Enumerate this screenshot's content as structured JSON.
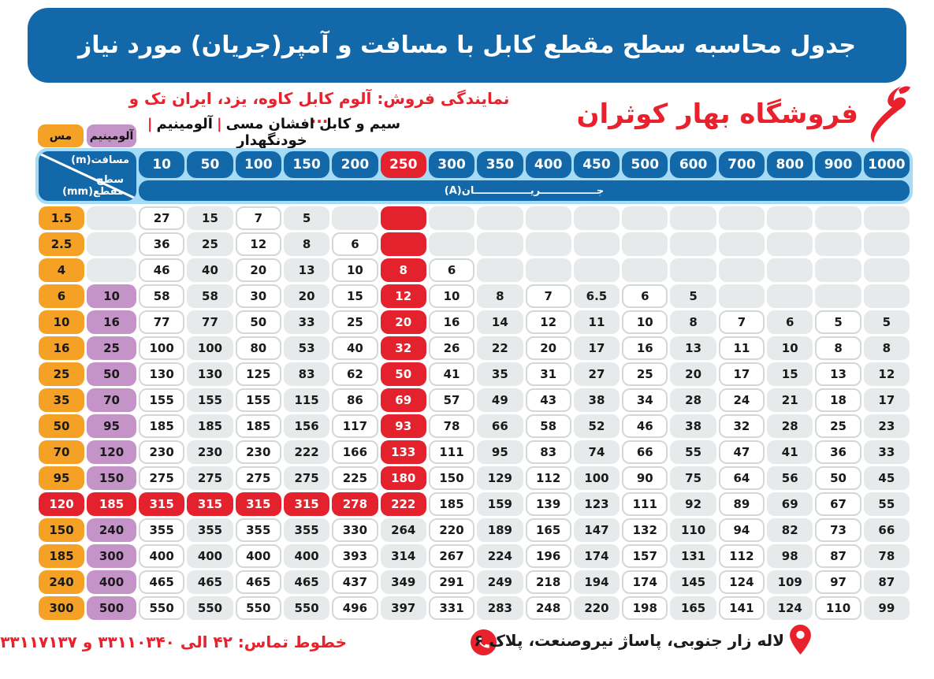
{
  "title": "جدول محاسبه سطح مقطع کابل با مسافت و آمپر(جریان) مورد نیاز",
  "header": {
    "dealer_line": "نمایندگی فروش: آلوم کابل کاوه، یزد، ایران تک و ...",
    "products": [
      "سیم و کابل افشان مسی",
      "آلومینیم",
      "خودنگهدار"
    ],
    "separator": "|",
    "store_name": "فروشگاه بهار کوثران"
  },
  "legend": {
    "copper_label": "مس",
    "aluminum_label": "آلومینیم"
  },
  "table": {
    "corner_top": "مسافت(m)",
    "corner_bottom": "سطح مقطع(mm)",
    "amperage_label": "جــــــــــــــــریــــــــــــــــان(A)",
    "distance_columns": [
      "10",
      "50",
      "100",
      "150",
      "200",
      "250",
      "300",
      "350",
      "400",
      "450",
      "500",
      "600",
      "700",
      "800",
      "900",
      "1000"
    ],
    "highlight": {
      "column_index": 5,
      "column_red_through_row": 11,
      "full_red_row": 11
    },
    "rows": [
      {
        "copper": "1.5",
        "aluminum": "",
        "values": [
          "27",
          "15",
          "7",
          "5",
          "",
          "",
          "",
          "",
          "",
          "",
          "",
          "",
          "",
          "",
          "",
          ""
        ]
      },
      {
        "copper": "2.5",
        "aluminum": "",
        "values": [
          "36",
          "25",
          "12",
          "8",
          "6",
          "",
          "",
          "",
          "",
          "",
          "",
          "",
          "",
          "",
          "",
          ""
        ]
      },
      {
        "copper": "4",
        "aluminum": "",
        "values": [
          "46",
          "40",
          "20",
          "13",
          "10",
          "8",
          "6",
          "",
          "",
          "",
          "",
          "",
          "",
          "",
          "",
          ""
        ]
      },
      {
        "copper": "6",
        "aluminum": "10",
        "values": [
          "58",
          "58",
          "30",
          "20",
          "15",
          "12",
          "10",
          "8",
          "7",
          "6.5",
          "6",
          "5",
          "",
          "",
          "",
          ""
        ]
      },
      {
        "copper": "10",
        "aluminum": "16",
        "values": [
          "77",
          "77",
          "50",
          "33",
          "25",
          "20",
          "16",
          "14",
          "12",
          "11",
          "10",
          "8",
          "7",
          "6",
          "5",
          "5"
        ]
      },
      {
        "copper": "16",
        "aluminum": "25",
        "values": [
          "100",
          "100",
          "80",
          "53",
          "40",
          "32",
          "26",
          "22",
          "20",
          "17",
          "16",
          "13",
          "11",
          "10",
          "8",
          "8"
        ]
      },
      {
        "copper": "25",
        "aluminum": "50",
        "values": [
          "130",
          "130",
          "125",
          "83",
          "62",
          "50",
          "41",
          "35",
          "31",
          "27",
          "25",
          "20",
          "17",
          "15",
          "13",
          "12"
        ]
      },
      {
        "copper": "35",
        "aluminum": "70",
        "values": [
          "155",
          "155",
          "155",
          "115",
          "86",
          "69",
          "57",
          "49",
          "43",
          "38",
          "34",
          "28",
          "24",
          "21",
          "18",
          "17"
        ]
      },
      {
        "copper": "50",
        "aluminum": "95",
        "values": [
          "185",
          "185",
          "185",
          "156",
          "117",
          "93",
          "78",
          "66",
          "58",
          "52",
          "46",
          "38",
          "32",
          "28",
          "25",
          "23"
        ]
      },
      {
        "copper": "70",
        "aluminum": "120",
        "values": [
          "230",
          "230",
          "230",
          "222",
          "166",
          "133",
          "111",
          "95",
          "83",
          "74",
          "66",
          "55",
          "47",
          "41",
          "36",
          "33"
        ]
      },
      {
        "copper": "95",
        "aluminum": "150",
        "values": [
          "275",
          "275",
          "275",
          "275",
          "225",
          "180",
          "150",
          "129",
          "112",
          "100",
          "90",
          "75",
          "64",
          "56",
          "50",
          "45"
        ]
      },
      {
        "copper": "120",
        "aluminum": "185",
        "values": [
          "315",
          "315",
          "315",
          "315",
          "278",
          "222",
          "185",
          "159",
          "139",
          "123",
          "111",
          "92",
          "89",
          "69",
          "67",
          "55"
        ]
      },
      {
        "copper": "150",
        "aluminum": "240",
        "values": [
          "355",
          "355",
          "355",
          "355",
          "330",
          "264",
          "220",
          "189",
          "165",
          "147",
          "132",
          "110",
          "94",
          "82",
          "73",
          "66"
        ]
      },
      {
        "copper": "185",
        "aluminum": "300",
        "values": [
          "400",
          "400",
          "400",
          "400",
          "393",
          "314",
          "267",
          "224",
          "196",
          "174",
          "157",
          "131",
          "112",
          "98",
          "87",
          "78"
        ]
      },
      {
        "copper": "240",
        "aluminum": "400",
        "values": [
          "465",
          "465",
          "465",
          "465",
          "437",
          "349",
          "291",
          "249",
          "218",
          "194",
          "174",
          "145",
          "124",
          "109",
          "97",
          "87"
        ]
      },
      {
        "copper": "300",
        "aluminum": "500",
        "values": [
          "550",
          "550",
          "550",
          "550",
          "496",
          "397",
          "331",
          "283",
          "248",
          "220",
          "198",
          "165",
          "141",
          "124",
          "110",
          "99"
        ]
      }
    ]
  },
  "footer": {
    "phones": "خطوط تماس: ۴۲ الی ۳۳۱۱۰۳۴۰ و ۳۳۱۱۷۱۳۷",
    "address": "لاله زار جنوبی، پاساژ نیروصنعت، پلاک ۶"
  },
  "colors": {
    "banner_blue": "#1268a9",
    "light_blue": "#a6dbf5",
    "red": "#e3222e",
    "orange": "#f5a126",
    "purple": "#c493c8",
    "cell_gray": "#e6eaeb",
    "text_red": "#e8212d"
  }
}
